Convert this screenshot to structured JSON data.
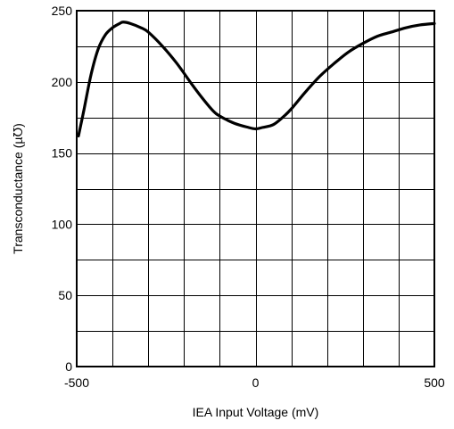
{
  "chart_data": {
    "type": "line",
    "title": "",
    "xlabel": "IEA Input Voltage (mV)",
    "ylabel": "Transconductance (µ℧)",
    "xlim": [
      -500,
      500
    ],
    "ylim": [
      0,
      250
    ],
    "x_ticks": [
      -500,
      0,
      500
    ],
    "x_tick_labels": [
      "-500",
      "0",
      "500"
    ],
    "y_ticks": [
      0,
      50,
      100,
      150,
      200,
      250
    ],
    "y_tick_labels": [
      "0",
      "50",
      "100",
      "150",
      "200",
      "250"
    ],
    "x_grid_step": 100,
    "y_grid_step": 25,
    "grid": true,
    "legend": "none",
    "line_color": "#000000",
    "series": [
      {
        "x": [
          -495,
          -480,
          -460,
          -440,
          -420,
          -400,
          -380,
          -370,
          -350,
          -320,
          -300,
          -260,
          -220,
          -180,
          -150,
          -120,
          -100,
          -60,
          -20,
          0,
          20,
          50,
          80,
          100,
          140,
          180,
          220,
          260,
          300,
          340,
          380,
          420,
          460,
          500
        ],
        "values": [
          162,
          180,
          205,
          223,
          233,
          238,
          241,
          242,
          241,
          238,
          235,
          225,
          213,
          199,
          189,
          180,
          176,
          171,
          168,
          167,
          168,
          170,
          176,
          181,
          193,
          204,
          213,
          221,
          227,
          232,
          235,
          238,
          240,
          241
        ]
      }
    ]
  }
}
